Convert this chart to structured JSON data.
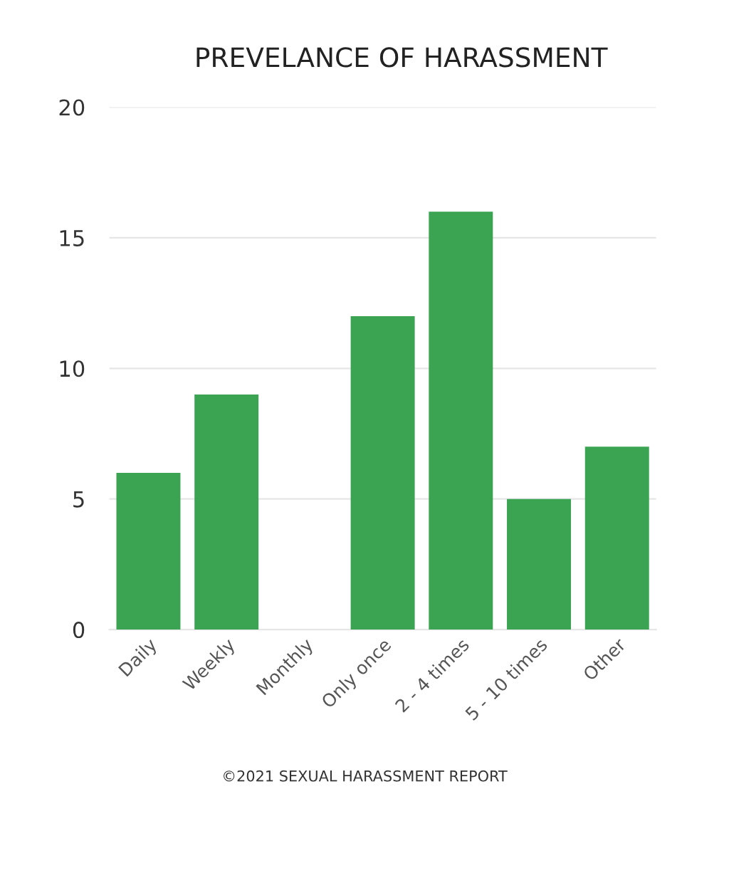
{
  "chart_data": {
    "type": "bar",
    "title": "PREVELANCE OF HARASSMENT",
    "categories": [
      "Daily",
      "Weekly",
      "Monthly",
      "Only once",
      "2 - 4 times",
      "5 - 10 times",
      "Other"
    ],
    "values": [
      6,
      9,
      0,
      12,
      16,
      5,
      7
    ],
    "color": "#3ba453",
    "ylim": [
      0,
      20
    ],
    "yticks": [
      0,
      5,
      10,
      15,
      20
    ],
    "grid": "y",
    "annotations": [
      "©2021 SEXUAL HARASSMENT REPORT"
    ]
  }
}
